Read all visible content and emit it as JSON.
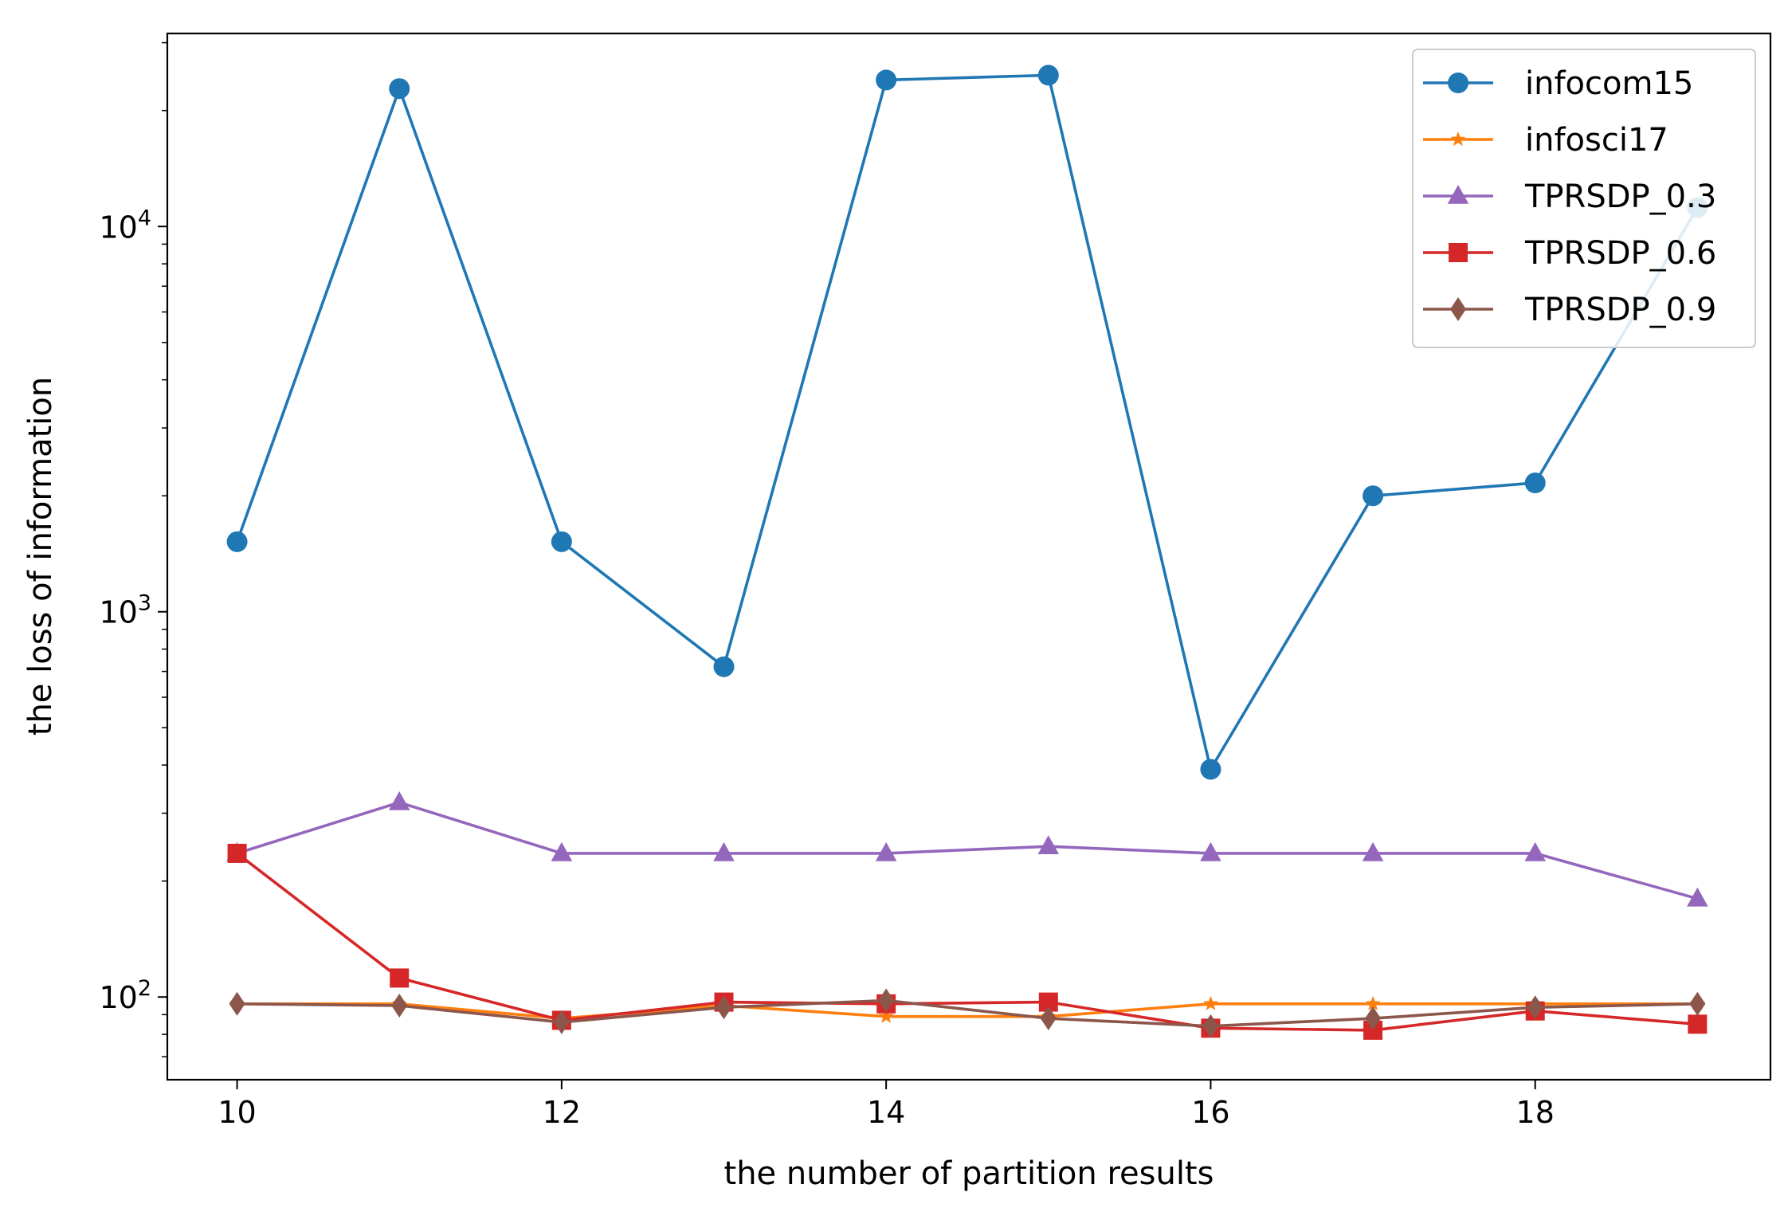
{
  "chart_data": {
    "type": "line",
    "title": "",
    "xlabel": "the number of partition results",
    "ylabel": "the loss of information",
    "yscale": "log",
    "xlim": [
      9.57,
      19.45
    ],
    "ylim": [
      61,
      31700
    ],
    "x_ticks": [
      10,
      12,
      14,
      16,
      18
    ],
    "y_ticks": [
      {
        "value": 100,
        "base": "10",
        "exp": "2"
      },
      {
        "value": 1000,
        "base": "10",
        "exp": "3"
      },
      {
        "value": 10000,
        "base": "10",
        "exp": "4"
      }
    ],
    "x": [
      10,
      11,
      12,
      13,
      14,
      15,
      16,
      17,
      18,
      19
    ],
    "grid": false,
    "legend_position": "top-right",
    "series": [
      {
        "name": "infocom15",
        "color": "#1f77b4",
        "marker": "circle",
        "values": [
          1520,
          22800,
          1520,
          720,
          24000,
          24700,
          390,
          2000,
          2160,
          11200
        ]
      },
      {
        "name": "infosci17",
        "color": "#ff7f0e",
        "marker": "star",
        "values": [
          96,
          96,
          88,
          95,
          89,
          89,
          96,
          96,
          96,
          96
        ]
      },
      {
        "name": "TPRSDP_0.3",
        "color": "#9467bd",
        "marker": "triangle",
        "values": [
          236,
          320,
          236,
          236,
          236,
          246,
          236,
          236,
          236,
          180
        ]
      },
      {
        "name": "TPRSDP_0.6",
        "color": "#d62728",
        "marker": "square",
        "values": [
          236,
          112,
          87,
          97,
          96,
          97,
          83,
          82,
          92,
          85
        ]
      },
      {
        "name": "TPRSDP_0.9",
        "color": "#8c564b",
        "marker": "diamond",
        "values": [
          96,
          95,
          86,
          94,
          98,
          88,
          84,
          88,
          94,
          96
        ]
      }
    ]
  }
}
